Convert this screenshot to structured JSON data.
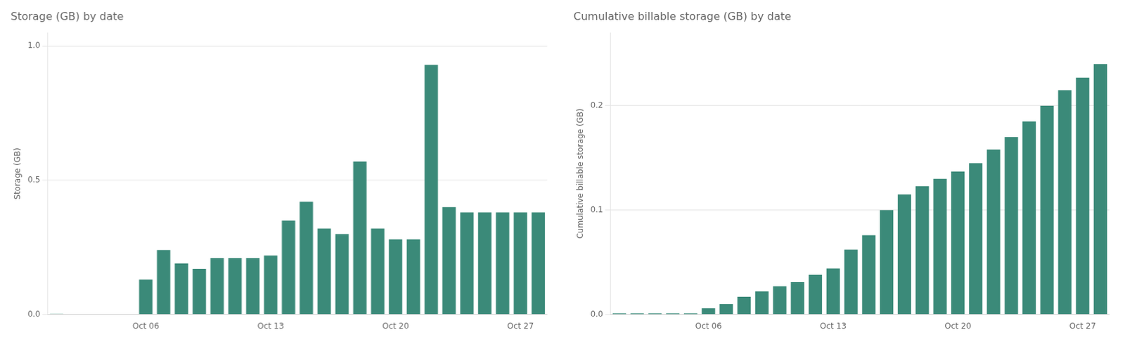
{
  "chart_data": [
    {
      "type": "bar",
      "title": "Storage (GB) by date",
      "ylabel": "Storage (GB)",
      "categories": [
        null,
        null,
        null,
        null,
        null,
        "Oct 06",
        null,
        null,
        null,
        null,
        null,
        null,
        "Oct 13",
        null,
        null,
        null,
        null,
        null,
        null,
        "Oct 20",
        null,
        null,
        null,
        null,
        null,
        null,
        "Oct 27",
        null
      ],
      "values": [
        0.002,
        0.0,
        0.0,
        0.0,
        0.0,
        0.13,
        0.24,
        0.19,
        0.17,
        0.21,
        0.21,
        0.21,
        0.22,
        0.35,
        0.42,
        0.32,
        0.3,
        0.57,
        0.32,
        0.28,
        0.28,
        0.93,
        0.4,
        0.38,
        0.38,
        0.38,
        0.38,
        0.38
      ],
      "color": "#3b8a79",
      "ylim": [
        0,
        1.05
      ],
      "yticks": [
        {
          "value": 0,
          "label": "0.0"
        },
        0.5,
        {
          "value": 1,
          "label": "1.0"
        }
      ],
      "grid": true
    },
    {
      "type": "bar",
      "title": "Cumulative billable storage (GB) by date",
      "ylabel": "Cumulative billable storage (GB)",
      "categories": [
        null,
        null,
        null,
        null,
        null,
        "Oct 06",
        null,
        null,
        null,
        null,
        null,
        null,
        "Oct 13",
        null,
        null,
        null,
        null,
        null,
        null,
        "Oct 20",
        null,
        null,
        null,
        null,
        null,
        null,
        "Oct 27",
        null
      ],
      "values": [
        0.001,
        0.001,
        0.001,
        0.001,
        0.001,
        0.006,
        0.01,
        0.017,
        0.022,
        0.027,
        0.031,
        0.038,
        0.044,
        0.062,
        0.076,
        0.1,
        0.115,
        0.123,
        0.13,
        0.137,
        0.145,
        0.158,
        0.17,
        0.185,
        0.2,
        0.215,
        0.227,
        0.24
      ],
      "color": "#3b8a79",
      "ylim": [
        0,
        0.27
      ],
      "yticks": [
        {
          "value": 0,
          "label": "0.0"
        },
        0.1,
        0.2
      ],
      "grid": true
    }
  ]
}
